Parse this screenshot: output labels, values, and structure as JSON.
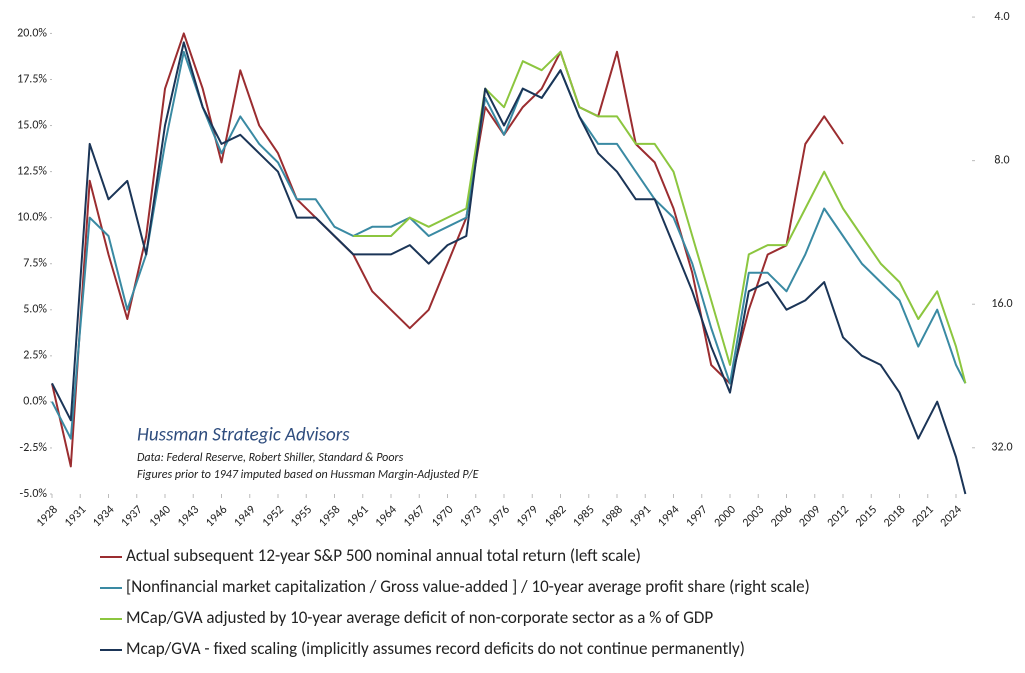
{
  "chart_data": {
    "type": "line",
    "annotations": [
      "Hussman Strategic Advisors",
      "Data: Federal Reserve, Robert Shiller, Standard & Poors",
      "Figures prior to 1947 imputed based on Hussman Margin-Adjusted P/E"
    ],
    "x": [
      1928,
      1930,
      1932,
      1934,
      1936,
      1938,
      1940,
      1942,
      1944,
      1946,
      1948,
      1950,
      1952,
      1954,
      1956,
      1958,
      1960,
      1962,
      1964,
      1966,
      1968,
      1970,
      1972,
      1974,
      1976,
      1978,
      1980,
      1982,
      1984,
      1986,
      1988,
      1990,
      1992,
      1994,
      1996,
      1998,
      2000,
      2002,
      2004,
      2006,
      2008,
      2010,
      2012,
      2014,
      2016,
      2018,
      2020,
      2022,
      2024,
      2025
    ],
    "xlim": [
      1928,
      2025.7
    ],
    "xticks": [
      1928,
      1931,
      1934,
      1937,
      1940,
      1943,
      1946,
      1949,
      1952,
      1955,
      1958,
      1961,
      1964,
      1967,
      1970,
      1973,
      1976,
      1979,
      1982,
      1985,
      1988,
      1991,
      1994,
      1997,
      2000,
      2003,
      2006,
      2009,
      2012,
      2015,
      2018,
      2021,
      2024
    ],
    "ylim": [
      -5,
      21
    ],
    "yticks": [
      {
        "value": 20,
        "label": "20.0%"
      },
      {
        "value": 17.5,
        "label": "17.5%"
      },
      {
        "value": 15,
        "label": "15.0%"
      },
      {
        "value": 12.5,
        "label": "12.5%"
      },
      {
        "value": 10,
        "label": "10.0%"
      },
      {
        "value": 7.5,
        "label": "7.5%"
      },
      {
        "value": 5,
        "label": "5.0%"
      },
      {
        "value": 2.5,
        "label": "2.5%"
      },
      {
        "value": 0,
        "label": "0.0%"
      },
      {
        "value": -2.5,
        "label": "-2.5%"
      },
      {
        "value": -5,
        "label": "-5.0%"
      }
    ],
    "y2lim": [
      3.96,
      40
    ],
    "y2log": true,
    "y2inverted": true,
    "y2ticks": [
      {
        "value": 4,
        "label": "4.0"
      },
      {
        "value": 8,
        "label": "8.0"
      },
      {
        "value": 16,
        "label": "16.0"
      },
      {
        "value": 32,
        "label": "32.0"
      }
    ],
    "series": [
      {
        "name": "Actual subsequent 12-year S&P 500 nominal annual total return (left scale)",
        "color": "#9b2d30",
        "values": [
          1,
          -3.5,
          12,
          8,
          4.5,
          9,
          17,
          20,
          17,
          13,
          18,
          15,
          13.5,
          11,
          10,
          9,
          8,
          6,
          5,
          4,
          5,
          7.5,
          10,
          16,
          14.5,
          16,
          17,
          19,
          16,
          15.5,
          19,
          14,
          13,
          10.5,
          7,
          2,
          1,
          5,
          8,
          8.5,
          14,
          15.5,
          14,
          null,
          null,
          null,
          null,
          null,
          null,
          null
        ]
      },
      {
        "name": "[Nonfinancial market capitalization / Gross value-added ] / 10-year average profit share (right scale)",
        "color": "#3a8aa3",
        "axis": "y2",
        "values": [
          25.62,
          30.61,
          10.53,
          11.51,
          16.43,
          12.58,
          7.38,
          4.73,
          6.18,
          7.72,
          6.46,
          7.38,
          8.07,
          9.64,
          9.64,
          11.01,
          11.51,
          11.01,
          11.01,
          10.53,
          11.51,
          11.01,
          10.53,
          5.91,
          7.06,
          5.65,
          5.91,
          5.17,
          6.46,
          7.38,
          7.38,
          8.44,
          9.64,
          10.53,
          13.15,
          17.95,
          23.44,
          13.75,
          13.75,
          15.03,
          12.58,
          10.08,
          11.51,
          13.15,
          14.38,
          15.71,
          19.63,
          16.43,
          21.45,
          23.44
        ]
      },
      {
        "name": "MCap/GVA adjusted by 10-year average deficit of non-corporate sector as a % of GDP",
        "color": "#8cc63f",
        "axis": "y2",
        "values": [
          null,
          null,
          null,
          null,
          null,
          null,
          null,
          null,
          null,
          null,
          null,
          null,
          null,
          null,
          null,
          null,
          11.51,
          11.51,
          11.51,
          10.53,
          11.01,
          10.53,
          10.08,
          5.65,
          6.18,
          4.95,
          5.17,
          4.73,
          6.18,
          6.46,
          6.46,
          7.38,
          7.38,
          8.44,
          11.51,
          15.71,
          21.45,
          12.58,
          12.03,
          12.03,
          10.08,
          8.44,
          10.08,
          11.51,
          13.15,
          14.38,
          17.18,
          15.03,
          19.63,
          23.44
        ]
      },
      {
        "name": "Mcap/GVA - fixed scaling (implicitly assumes record deficits do not continue permanently)",
        "color": "#1b3557",
        "axis": "y2",
        "values": [
          23.44,
          28.01,
          7.38,
          9.64,
          8.82,
          12.58,
          6.75,
          4.52,
          6.18,
          7.38,
          7.06,
          7.72,
          8.44,
          10.53,
          10.53,
          11.51,
          12.58,
          12.58,
          12.58,
          12.03,
          13.15,
          12.03,
          11.51,
          5.65,
          6.75,
          5.65,
          5.91,
          5.17,
          6.46,
          7.72,
          8.44,
          9.64,
          9.64,
          12.03,
          15.03,
          19.63,
          24.51,
          15.03,
          14.38,
          16.43,
          15.71,
          14.38,
          18.77,
          20.52,
          21.45,
          24.51,
          30.61,
          25.62,
          33.46,
          40.0
        ]
      }
    ]
  }
}
